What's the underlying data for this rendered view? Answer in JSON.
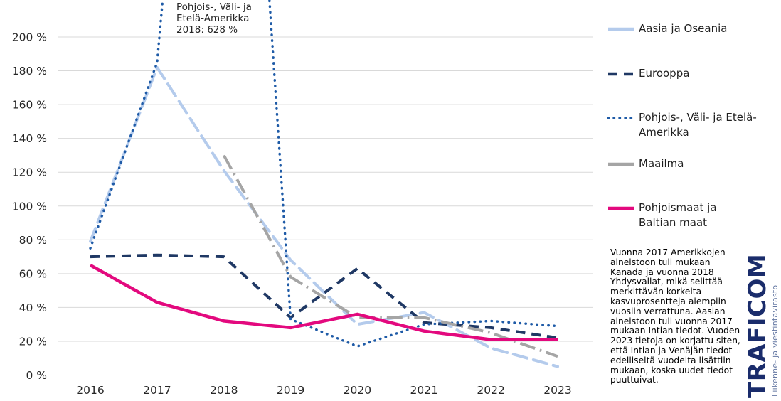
{
  "chart_data": {
    "type": "line",
    "title": "",
    "x_categories": [
      "2016",
      "2017",
      "2018",
      "2019",
      "2020",
      "2021",
      "2022",
      "2023"
    ],
    "y_axis": {
      "min": 0,
      "max": 200,
      "step": 20,
      "unit": "%"
    },
    "y_ticks": [
      {
        "value": 0,
        "label": "0 %"
      },
      {
        "value": 20,
        "label": "20 %"
      },
      {
        "value": 40,
        "label": "40 %"
      },
      {
        "value": 60,
        "label": "60 %"
      },
      {
        "value": 80,
        "label": "80 %"
      },
      {
        "value": 100,
        "label": "100 %"
      },
      {
        "value": 120,
        "label": "120 %"
      },
      {
        "value": 140,
        "label": "140 %"
      },
      {
        "value": 160,
        "label": "160 %"
      },
      {
        "value": 180,
        "label": "180 %"
      },
      {
        "value": 200,
        "label": "200 %"
      }
    ],
    "grid": true,
    "legend_position": "right",
    "series": [
      {
        "name": "Aasia ja Oseania",
        "legend_label": "Aasia ja Oseania",
        "color": "#b4cbec",
        "style": "long-dash",
        "values": [
          79,
          182,
          121,
          68,
          30,
          37,
          16,
          5
        ]
      },
      {
        "name": "Eurooppa",
        "legend_label": "Eurooppa",
        "color": "#1f3864",
        "style": "dash",
        "values": [
          70,
          71,
          70,
          34,
          63,
          31,
          28,
          22
        ]
      },
      {
        "name": "Pohjois-, Väli- ja Etelä-Amerikka",
        "legend_label": "Pohjois-, Väli- ja Etelä-\nAmerikka",
        "color": "#1f5ba7",
        "style": "dotted",
        "values": [
          75,
          185,
          628,
          33,
          17,
          30,
          32,
          29
        ]
      },
      {
        "name": "Maailma",
        "legend_label": "Maailma",
        "color": "#a5a5a5",
        "style": "dash-dot",
        "values": [
          null,
          null,
          130,
          58,
          34,
          34,
          25,
          11
        ]
      },
      {
        "name": "Pohjoismaat ja Baltian maat",
        "legend_label": "Pohjoismaat ja\nBaltian maat",
        "color": "#e3097e",
        "style": "solid",
        "values": [
          65,
          43,
          32,
          28,
          36,
          26,
          21,
          21
        ]
      }
    ],
    "annotation": "Pohjois-, Väli- ja\nEtelä-Amerikka\n2018: 628 %",
    "colors": {
      "gridline": "#d9d9d9",
      "axis_text": "#262626"
    }
  },
  "footnote": "Vuonna 2017 Amerikkojen aineistoon tuli mukaan Kanada ja vuonna 2018 Yhdysvallat, mikä selittää merkittävän korkeita kasvuprosentteja aiempiin vuosiin verrattuna. Aasian aineistoon tuli vuonna 2017 mukaan Intian tiedot. Vuoden 2023 tietoja on korjattu siten, että Intian ja Venäjän tiedot edelliseltä vuodelta lisättiin mukaan, koska uudet tiedot puuttuivat.",
  "logo": {
    "brand": "TRAFICOM",
    "tagline": "Liikenne- ja viestintävirasto",
    "brand_color": "#1a2c6b"
  }
}
